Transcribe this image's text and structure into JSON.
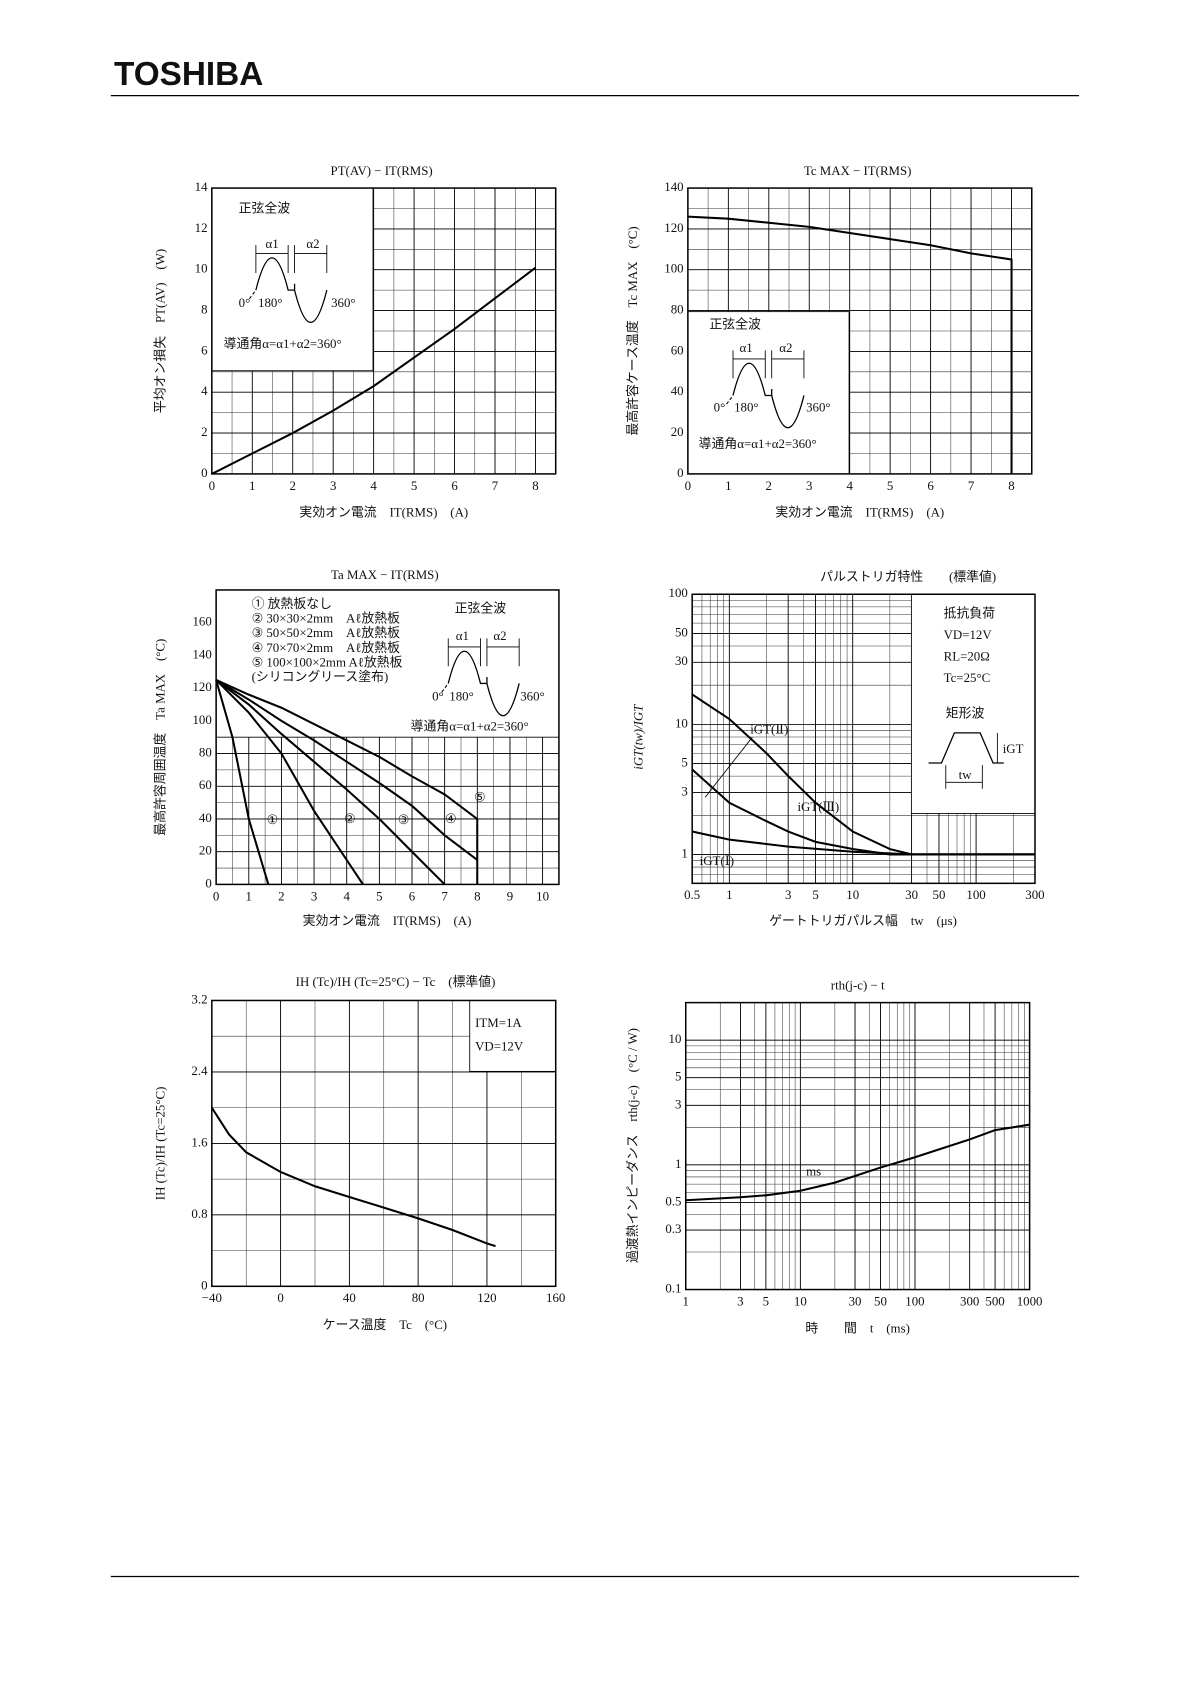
{
  "header": {
    "brand": "TOSHIBA"
  },
  "chart_data": [
    {
      "type": "line",
      "title": "PT(AV) − IT(RMS)",
      "xlabel": "実効オン電流　IT(RMS)　(A)",
      "ylabel": "平均オン損失　PT(AV)　(W)",
      "xlim": [
        0,
        8.5
      ],
      "ylim": [
        0,
        14
      ],
      "xticks": [
        0,
        1,
        2,
        3,
        4,
        5,
        6,
        7,
        8
      ],
      "yticks": [
        0,
        2,
        4,
        6,
        8,
        10,
        12,
        14
      ],
      "grid": true,
      "series": [
        {
          "color": "#000000",
          "x": [
            0,
            1,
            2,
            3,
            4,
            5,
            6,
            7,
            8
          ],
          "values": [
            0,
            1,
            2,
            3.1,
            4.3,
            5.7,
            7.1,
            8.6,
            10.1
          ]
        }
      ],
      "annotations": [
        "正弦全波",
        "α1",
        "α2",
        "0°",
        "180°",
        "360°",
        "導通角α=α1+α2=360°"
      ]
    },
    {
      "type": "line",
      "title": "Tc MAX − IT(RMS)",
      "xlabel": "実効オン電流　IT(RMS)　(A)",
      "ylabel": "最高許容ケース温度　Tc MAX　(°C)",
      "xlim": [
        0,
        8.5
      ],
      "ylim": [
        0,
        140
      ],
      "xticks": [
        0,
        1,
        2,
        3,
        4,
        5,
        6,
        7,
        8
      ],
      "yticks": [
        0,
        20,
        40,
        60,
        80,
        100,
        120,
        140
      ],
      "grid": true,
      "series": [
        {
          "color": "#000000",
          "x": [
            0,
            1,
            2,
            3,
            4,
            5,
            6,
            7,
            8,
            8
          ],
          "values": [
            126,
            125,
            123,
            121,
            118,
            115,
            112,
            108,
            105,
            0
          ]
        }
      ],
      "annotations": [
        "正弦全波",
        "α1",
        "α2",
        "0°",
        "180°",
        "360°",
        "導通角α=α1+α2=360°"
      ]
    },
    {
      "type": "line",
      "title": "Ta MAX − IT(RMS)",
      "xlabel": "実効オン電流　IT(RMS)　(A)",
      "ylabel": "最高許容周囲温度　Ta MAX　(°C)",
      "xlim": [
        0,
        10.5
      ],
      "ylim": [
        0,
        180
      ],
      "xticks": [
        0,
        1,
        2,
        3,
        4,
        5,
        6,
        7,
        8,
        9,
        10
      ],
      "yticks": [
        0,
        20,
        40,
        60,
        80,
        100,
        120,
        140,
        160
      ],
      "grid": true,
      "legend_text": [
        "① 放熱板なし",
        "② 30×30×2mm　Aℓ放熱板",
        "③ 50×50×2mm　Aℓ放熱板",
        "④ 70×70×2mm　Aℓ放熱板",
        "⑤ 100×100×2mm Aℓ放熱板",
        "(シリコングリース塗布)"
      ],
      "series": [
        {
          "name": "①",
          "color": "#000000",
          "x": [
            0,
            0.5,
            1,
            1.6
          ],
          "values": [
            125,
            90,
            40,
            0
          ]
        },
        {
          "name": "②",
          "color": "#000000",
          "x": [
            0,
            1,
            2,
            3,
            4,
            4.5
          ],
          "values": [
            125,
            105,
            80,
            45,
            15,
            0
          ]
        },
        {
          "name": "③",
          "color": "#000000",
          "x": [
            0,
            1,
            2,
            3,
            4,
            5,
            6,
            7
          ],
          "values": [
            125,
            110,
            92,
            75,
            58,
            40,
            20,
            0
          ]
        },
        {
          "name": "④",
          "color": "#000000",
          "x": [
            0,
            1,
            2,
            3,
            4,
            5,
            6,
            7,
            8
          ],
          "values": [
            125,
            113,
            100,
            88,
            75,
            62,
            48,
            30,
            15
          ]
        },
        {
          "name": "⑤",
          "color": "#000000",
          "x": [
            0,
            1,
            2,
            3,
            4,
            5,
            6,
            7,
            8,
            8
          ],
          "values": [
            125,
            116,
            108,
            98,
            88,
            78,
            66,
            55,
            40,
            0
          ]
        }
      ],
      "annotations": [
        "正弦全波",
        "α1",
        "α2",
        "0°",
        "180°",
        "360°",
        "導通角α=α1+α2=360°"
      ]
    },
    {
      "type": "line",
      "title": "パルストリガ特性　　(標準値)",
      "xlabel": "ゲートトリガパルス幅　tw　(μs)",
      "ylabel": "iGT(tw)/IGT",
      "xlog": true,
      "ylog": true,
      "xlim": [
        0.5,
        300
      ],
      "ylim": [
        0.6,
        100
      ],
      "xticks": [
        0.5,
        1,
        3,
        5,
        10,
        30,
        50,
        100,
        300
      ],
      "yticks": [
        1,
        3,
        5,
        10,
        30,
        50,
        100
      ],
      "grid": true,
      "series": [
        {
          "name": "iGT(Ⅱ)",
          "color": "#000000",
          "x": [
            0.5,
            1,
            2,
            3,
            5,
            10,
            20,
            30,
            300
          ],
          "values": [
            17,
            11,
            6,
            4,
            2.5,
            1.5,
            1.1,
            1,
            1
          ]
        },
        {
          "name": "iGT(Ⅲ)",
          "color": "#000000",
          "x": [
            0.5,
            1,
            2,
            3,
            5,
            10,
            20,
            300
          ],
          "values": [
            4.5,
            2.5,
            1.8,
            1.5,
            1.25,
            1.1,
            1,
            1
          ]
        },
        {
          "name": "iGT(Ⅰ)",
          "color": "#000000",
          "x": [
            0.5,
            1,
            3,
            10,
            30,
            300
          ],
          "values": [
            1.5,
            1.3,
            1.15,
            1.05,
            1,
            1
          ]
        }
      ],
      "annotations": [
        "抵抗負荷",
        "VD=12V",
        "RL=20Ω",
        "Tc=25°C",
        "矩形波",
        "iGT",
        "tw"
      ]
    },
    {
      "type": "line",
      "title": "IH (Tc)/IH (Tc=25°C) − Tc　(標準値)",
      "xlabel": "ケース温度　Tc　(°C)",
      "ylabel": "IH (Tc)/IH (Tc=25°C)",
      "xlim": [
        -40,
        160
      ],
      "ylim": [
        0,
        3.2
      ],
      "xticks": [
        {
          "value": -40,
          "label": "−40"
        },
        0,
        40,
        80,
        120,
        160
      ],
      "yticks": [
        0,
        0.8,
        1.6,
        2.4,
        3.2
      ],
      "grid": true,
      "series": [
        {
          "color": "#000000",
          "x": [
            -40,
            -30,
            -20,
            0,
            20,
            40,
            60,
            80,
            100,
            120,
            125
          ],
          "values": [
            2.0,
            1.7,
            1.5,
            1.28,
            1.12,
            1.0,
            0.88,
            0.76,
            0.63,
            0.48,
            0.45
          ]
        }
      ],
      "annotations": [
        "ITM=1A",
        "VD=12V"
      ]
    },
    {
      "type": "line",
      "title": "rth(j-c) − t",
      "xlabel": "時　　間　t　(ms)",
      "ylabel": "過渡熱インピーダンス　rth(j-c)　(°C / W)",
      "xlog": true,
      "ylog": true,
      "xlim": [
        1,
        1000
      ],
      "ylim": [
        0.1,
        20
      ],
      "xticks": [
        1,
        3,
        5,
        10,
        30,
        50,
        100,
        300,
        500,
        1000
      ],
      "yticks": [
        0.1,
        0.3,
        0.5,
        1,
        3,
        5,
        10
      ],
      "grid": true,
      "series": [
        {
          "color": "#000000",
          "x": [
            1,
            3,
            5,
            10,
            20,
            50,
            100,
            300,
            500,
            1000
          ],
          "values": [
            0.52,
            0.55,
            0.57,
            0.62,
            0.72,
            0.95,
            1.15,
            1.6,
            1.9,
            2.1
          ]
        }
      ],
      "annotations": [
        "ms"
      ]
    }
  ]
}
